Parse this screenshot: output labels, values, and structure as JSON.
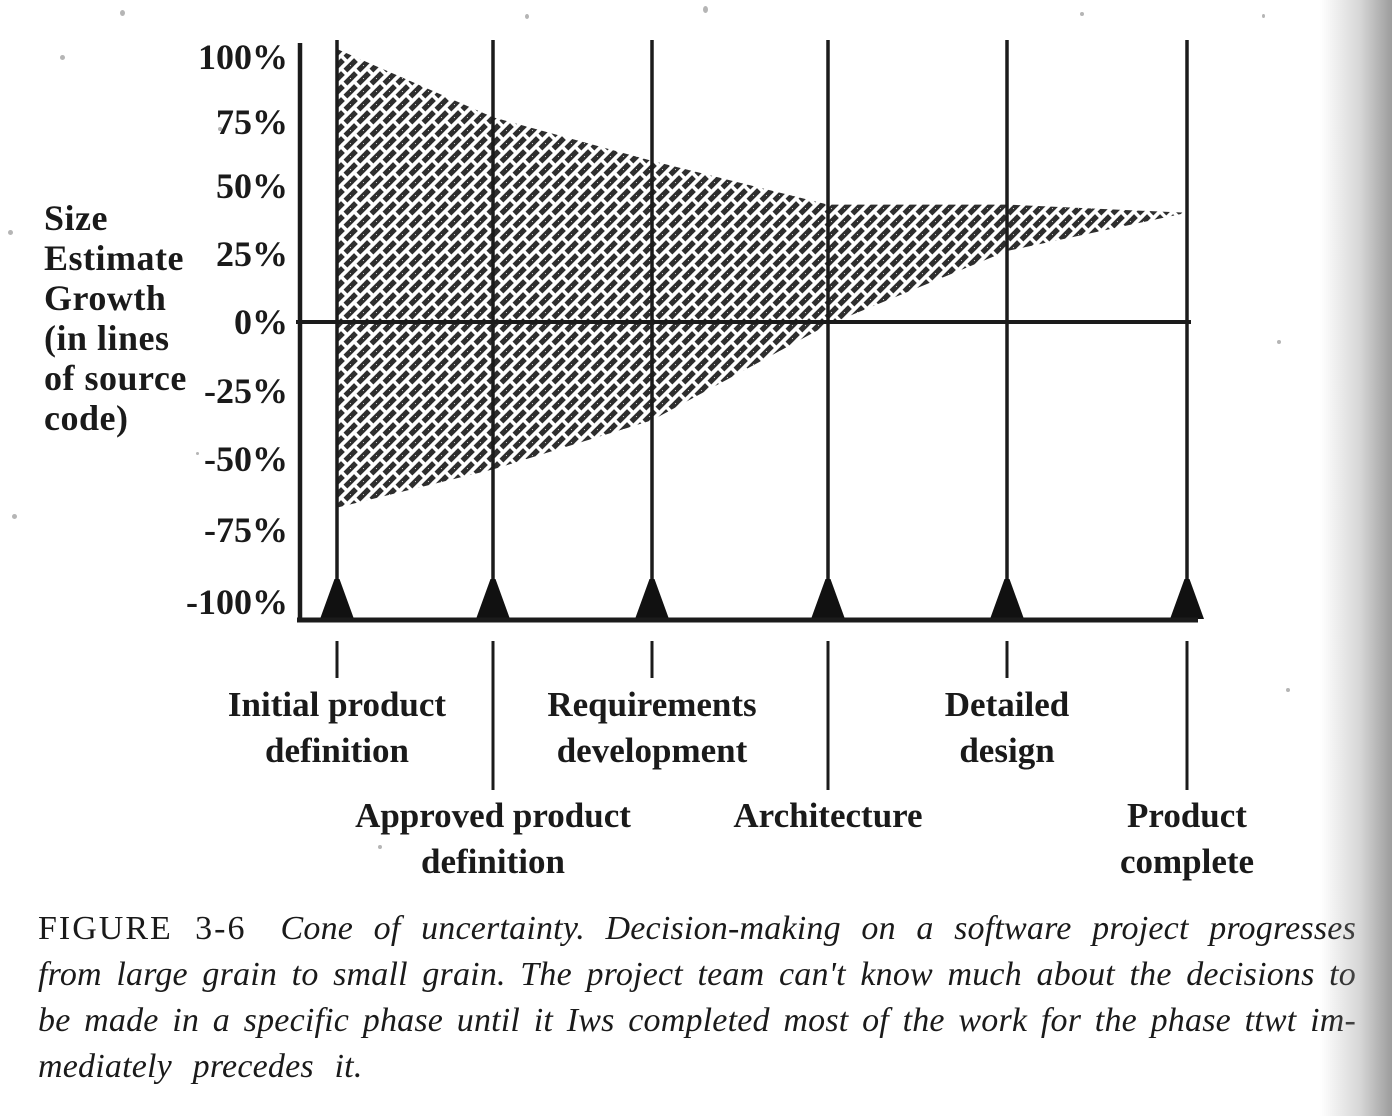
{
  "figure": {
    "y_axis_title_lines": [
      "Size",
      "Estimate",
      "Growth",
      "(in lines",
      "of source",
      "code)"
    ],
    "y_tick_labels": [
      "100%",
      "75%",
      "50%",
      "25%",
      "0%",
      "-25%",
      "-50%",
      "-75%",
      "-100%"
    ],
    "milestones": [
      {
        "label_lines": [
          "Initial product",
          "definition"
        ],
        "row": 1
      },
      {
        "label_lines": [
          "Approved product",
          "definition"
        ],
        "row": 2
      },
      {
        "label_lines": [
          "Requirements",
          "development"
        ],
        "row": 1
      },
      {
        "label_lines": [
          "Architecture"
        ],
        "row": 2
      },
      {
        "label_lines": [
          "Detailed",
          "design"
        ],
        "row": 1
      },
      {
        "label_lines": [
          "Product",
          "complete"
        ],
        "row": 2
      }
    ]
  },
  "caption": {
    "tag": "FIGURE 3-6",
    "line1": "Cone of uncertainty. Decision-making on a software project progresses",
    "line2": "from large grain to small grain. The project team can't know much about the decisions to",
    "line3": "be made in a specific phase until it Iws completed most of the work for the phase ttwt im-",
    "line4": "mediately precedes it."
  },
  "colors": {
    "ink": "#1b1b1b",
    "paper": "#ffffff",
    "page_edge_shadow": "#b5b5b5"
  },
  "chart_data": {
    "type": "area",
    "title": "Cone of uncertainty (FIGURE 3-6)",
    "ylabel": "Size Estimate Growth (in lines of source code)",
    "ylim": [
      -100,
      100
    ],
    "y_ticks_pct": [
      100,
      75,
      50,
      25,
      0,
      -25,
      -50,
      -75,
      -100
    ],
    "categories": [
      "Initial product definition",
      "Approved product definition",
      "Requirements development",
      "Architecture",
      "Detailed design",
      "Product complete"
    ],
    "series": [
      {
        "name": "upper bound of size estimate growth (%)",
        "values": [
          100,
          75,
          59,
          43,
          43,
          40
        ]
      },
      {
        "name": "lower bound of size estimate growth (%)",
        "values": [
          -68,
          -54,
          -36,
          -1,
          26,
          40
        ]
      }
    ],
    "fill_style": "diagonal hatching between upper and lower bounds",
    "grid": "vertical line at each milestone; horizontal line at 0%",
    "legend": "none",
    "annotations": "cone narrows from +100%/-68% at initial product definition and converges to about +40% at product complete; lower bound crosses 0% near architecture"
  }
}
